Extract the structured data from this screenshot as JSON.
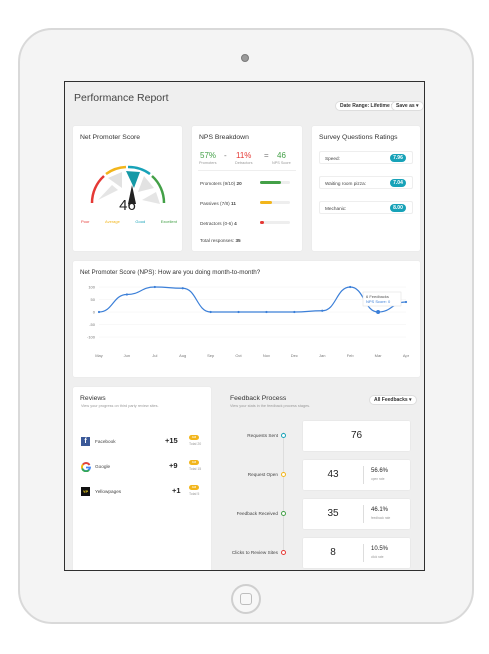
{
  "header": {
    "title": "Performance Report",
    "date_range_label": "Date Range: Lifetime",
    "save_as_label": "Save as"
  },
  "nps_card": {
    "title": "Net Promoter Score",
    "score": "46",
    "legend": [
      {
        "label": "Poor",
        "color": "#e53935"
      },
      {
        "label": "Average",
        "color": "#f2b51b"
      },
      {
        "label": "Good",
        "color": "#17a2b8"
      },
      {
        "label": "Excellent",
        "color": "#43a047"
      }
    ]
  },
  "breakdown": {
    "title": "NPS Breakdown",
    "promoters_pct": "57%",
    "promoters_label": "Promoters",
    "minus": "-",
    "detractors_pct": "11%",
    "detractors_label": "Detractors",
    "equals": "=",
    "nps_score": "46",
    "nps_label": "NPS Score",
    "rows": [
      {
        "label": "Promoters (9/10)",
        "count": "20",
        "color": "#43a047",
        "fill": 0.7
      },
      {
        "label": "Passives (7/8)",
        "count": "11",
        "color": "#f2b51b",
        "fill": 0.4
      },
      {
        "label": "Detractors (0-6)",
        "count": "4",
        "color": "#e53935",
        "fill": 0.12
      }
    ],
    "total_label": "Total responses:",
    "total_value": "35"
  },
  "survey": {
    "title": "Survey Questions Ratings",
    "items": [
      {
        "label": "Speed:",
        "value": "7.96"
      },
      {
        "label": "Waiting room pizza:",
        "value": "7.04"
      },
      {
        "label": "Mechanic:",
        "value": "8.00"
      }
    ],
    "badge_color": "#17a2b8"
  },
  "chart_card": {
    "title": "Net Promoter Score (NPS): How are you doing month-to-month?",
    "tooltip_line1": "6 Feedbacks",
    "tooltip_line2": "NPS Score: 0"
  },
  "chart_data": {
    "type": "line",
    "categories": [
      "May",
      "Jun",
      "Jul",
      "Aug",
      "Sep",
      "Oct",
      "Nov",
      "Dec",
      "Jan",
      "Feb",
      "Mar",
      "Apr"
    ],
    "values": [
      0,
      70,
      100,
      95,
      0,
      0,
      0,
      0,
      5,
      100,
      0,
      40
    ],
    "ylim": [
      -100,
      100
    ],
    "yticks": [
      "100",
      "50",
      "0",
      "-50",
      "-100"
    ],
    "line_color": "#3b7fd8"
  },
  "reviews": {
    "title": "Reviews",
    "subtitle": "View your progress on third party review sites.",
    "badge_label": "4.6",
    "items": [
      {
        "name": "Facebook",
        "delta": "+15",
        "total": "Total 20"
      },
      {
        "name": "Google",
        "delta": "+9",
        "total": "Total 15"
      },
      {
        "name": "Yellowpages",
        "delta": "+1",
        "total": "Total 5"
      }
    ]
  },
  "feedback": {
    "title": "Feedback Process",
    "subtitle": "View your stats in the feedback process stages.",
    "filter_label": "All Feedbacks",
    "steps": [
      {
        "label": "Requests Sent",
        "value": "76",
        "pct": "",
        "pct_sub": "",
        "color": "#17a2b8"
      },
      {
        "label": "Request Open",
        "value": "43",
        "pct": "56.6%",
        "pct_sub": "open rate",
        "color": "#f2b51b"
      },
      {
        "label": "Feedback Received",
        "value": "35",
        "pct": "46.1%",
        "pct_sub": "feedback rate",
        "color": "#43a047"
      },
      {
        "label": "Clicks to Review Sites",
        "value": "8",
        "pct": "10.5%",
        "pct_sub": "click rate",
        "color": "#e53935"
      }
    ]
  }
}
